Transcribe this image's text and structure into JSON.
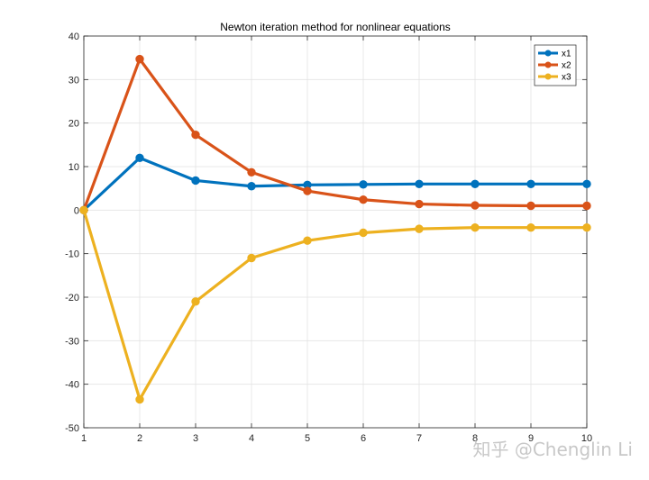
{
  "chart_data": {
    "type": "line",
    "title": "Newton iteration method for nonlinear equations",
    "x": [
      1,
      2,
      3,
      4,
      5,
      6,
      7,
      8,
      9,
      10
    ],
    "xlim": [
      1,
      10
    ],
    "ylim": [
      -50,
      40
    ],
    "xticks": [
      "1",
      "2",
      "3",
      "4",
      "5",
      "6",
      "7",
      "8",
      "9",
      "10"
    ],
    "yticks": [
      "40",
      "30",
      "20",
      "10",
      "0",
      "-10",
      "-20",
      "-30",
      "-40",
      "-50"
    ],
    "grid": true,
    "legend_position": "top-right",
    "series": [
      {
        "name": "x1",
        "color": "#0072BD",
        "values": [
          0,
          12,
          6.8,
          5.5,
          5.8,
          5.9,
          6.0,
          6.0,
          6.0,
          6.0
        ]
      },
      {
        "name": "x2",
        "color": "#D95319",
        "values": [
          0,
          34.7,
          17.3,
          8.7,
          4.4,
          2.4,
          1.4,
          1.1,
          1.0,
          1.0
        ]
      },
      {
        "name": "x3",
        "color": "#EDB120",
        "values": [
          0,
          -43.5,
          -21.0,
          -11.0,
          -7.0,
          -5.2,
          -4.3,
          -4.0,
          -4.0,
          -4.0
        ]
      }
    ]
  },
  "watermark": "知乎 @Chenglin Li"
}
